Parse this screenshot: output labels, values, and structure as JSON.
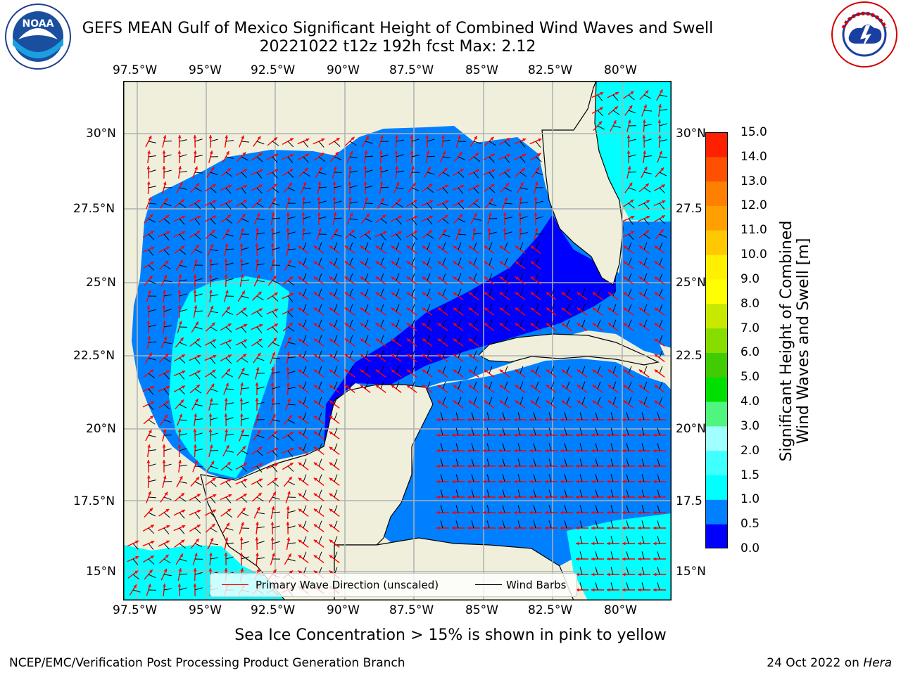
{
  "title": {
    "line1": "GEFS MEAN Gulf of Mexico Significant Height of Combined Wind Waves and Swell",
    "line2": "20221022 t12z 192h fcst   Max: 2.12"
  },
  "logos": {
    "left": "noara-logo",
    "right": "nws-logo",
    "left_text": "NOAA"
  },
  "axes": {
    "longitude_ticks": [
      "97.5°W",
      "95°W",
      "92.5°W",
      "90°W",
      "87.5°W",
      "85°W",
      "82.5°W",
      "80°W"
    ],
    "latitude_ticks": [
      "30°N",
      "27.5°N",
      "25°N",
      "22.5°N",
      "20°N",
      "17.5°N",
      "15°N"
    ],
    "right_latitude_ticks": [
      "30°N",
      "27.5",
      "25°N",
      "22.5",
      "20°N",
      "17.5",
      "15°N"
    ],
    "lon_range": [
      -98,
      -78.2
    ],
    "lat_range": [
      14,
      31.8
    ]
  },
  "colorbar": {
    "label_line1": "Significant Height of Combined",
    "label_line2": "Wind Waves and Swell [m]",
    "ticks": [
      "0.0",
      "0.5",
      "1.0",
      "1.5",
      "2.0",
      "3.0",
      "4.0",
      "5.0",
      "6.0",
      "7.0",
      "8.0",
      "9.0",
      "10.0",
      "11.0",
      "12.0",
      "13.0",
      "14.0",
      "15.0"
    ],
    "colors": [
      "#0000ff",
      "#0080ff",
      "#00ffff",
      "#40ffff",
      "#a0ffff",
      "#50f580",
      "#00e000",
      "#40cc00",
      "#88dd00",
      "#c8e800",
      "#ffff00",
      "#fff000",
      "#ffc800",
      "#ffa000",
      "#ff8000",
      "#ff5000",
      "#ff2000",
      "#ff0000"
    ]
  },
  "legend": {
    "items": [
      {
        "label": "Primary Wave Direction (unscaled)",
        "color": "#ff0000"
      },
      {
        "label": "Wind Barbs",
        "color": "#000000"
      }
    ]
  },
  "map_colors": {
    "land": "#efefdc",
    "coast": "#000000",
    "grid": "#b0b0b0"
  },
  "sea_ice_note": "Sea Ice Concentration > 15% is shown in pink to yellow",
  "footer": {
    "left": "NCEP/EMC/Verification Post Processing Product Generation Branch",
    "right_prefix": "24 Oct 2022 on",
    "right_host": "Hera"
  }
}
